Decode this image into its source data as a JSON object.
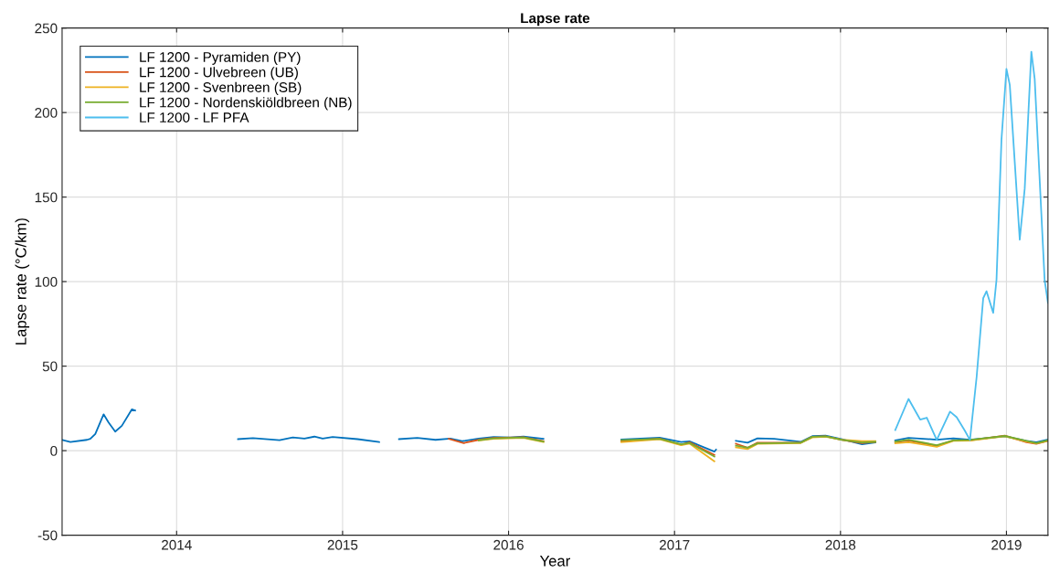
{
  "chart_data": {
    "type": "line",
    "title": "Lapse rate",
    "xlabel": "Year",
    "ylabel": "Lapse rate (°C/km)",
    "xlim": [
      2013.31,
      2019.25
    ],
    "xticks": [
      2014,
      2015,
      2016,
      2017,
      2018,
      2019
    ],
    "ylim": [
      -50,
      250
    ],
    "yticks": [
      -50,
      0,
      50,
      100,
      150,
      200,
      250
    ],
    "grid": true,
    "legend": "top left",
    "line_style": "solid",
    "marker": "none",
    "series": [
      {
        "name": "LF 1200 - Pyramiden (PY)",
        "color": "#0072bd",
        "x": [
          2013.31,
          2013.36,
          2013.46,
          2013.48,
          2013.51,
          2013.56,
          2013.59,
          2013.63,
          2013.67,
          2013.73,
          2013.75,
          2014.0,
          2014.37,
          2014.46,
          2014.62,
          2014.7,
          2014.77,
          2014.83,
          2014.88,
          2014.94,
          2015.09,
          2015.22,
          2015.3,
          2015.34,
          2015.45,
          2015.56,
          2015.65,
          2015.72,
          2015.82,
          2015.91,
          2016.01,
          2016.09,
          2016.21,
          2016.4,
          2016.68,
          2016.91,
          2017.04,
          2017.09,
          2017.24,
          2017.25,
          2017.3,
          2017.37,
          2017.44,
          2017.5,
          2017.6,
          2017.76,
          2017.83,
          2017.91,
          2018.01,
          2018.13,
          2018.21,
          2018.3,
          2018.33,
          2018.41,
          2018.58,
          2018.68,
          2018.78,
          2018.99,
          2019.12,
          2019.18,
          2019.25
        ],
        "values": [
          6.4,
          5.1,
          6.4,
          7.0,
          9.9,
          21.5,
          16.7,
          11.3,
          14.7,
          24.4,
          23.8,
          null,
          6.8,
          7.4,
          6.2,
          7.8,
          7.1,
          8.3,
          7.1,
          8.1,
          6.8,
          5.1,
          null,
          6.8,
          7.6,
          6.4,
          7.1,
          5.6,
          7.1,
          8.1,
          7.8,
          8.3,
          7.0,
          null,
          6.6,
          7.7,
          5.1,
          5.5,
          -0.6,
          0.6,
          null,
          5.8,
          4.7,
          7.3,
          7.0,
          5.2,
          8.6,
          8.9,
          6.7,
          3.8,
          4.9,
          null,
          6.1,
          7.6,
          6.5,
          7.3,
          6.5,
          8.5,
          5.8,
          5.0,
          6.5
        ]
      },
      {
        "name": "LF 1200 - Ulvebreen (UB)",
        "color": "#d95319",
        "x": [
          2015.64,
          2015.73,
          2015.82,
          2015.91,
          2016.09,
          2016.21,
          2016.4,
          2016.68,
          2016.91,
          2017.04,
          2017.09,
          2017.24,
          2017.3,
          2017.37,
          2017.44,
          2017.5,
          2017.76,
          2017.83,
          2017.91,
          2018.01,
          2018.13,
          2018.21,
          2018.3,
          2018.33,
          2018.41,
          2018.58,
          2018.68,
          2018.78,
          2018.99,
          2019.12,
          2019.18,
          2019.25
        ],
        "values": [
          7.0,
          4.5,
          6.4,
          7.6,
          8.0,
          5.6,
          null,
          5.5,
          7.2,
          3.5,
          5.0,
          -2.5,
          null,
          4.1,
          1.7,
          4.7,
          4.7,
          8.2,
          8.5,
          6.3,
          4.5,
          5.2,
          null,
          5.0,
          6.0,
          2.8,
          6.1,
          6.1,
          8.9,
          5.0,
          4.1,
          5.8
        ]
      },
      {
        "name": "LF 1200 - Svenbreen (SB)",
        "color": "#edb120",
        "x": [
          2015.82,
          2015.91,
          2016.09,
          2016.21,
          2016.4,
          2016.68,
          2016.91,
          2017.04,
          2017.09,
          2017.24,
          2017.3,
          2017.37,
          2017.44,
          2017.5,
          2017.76,
          2017.83,
          2017.91,
          2018.01,
          2018.13,
          2018.21,
          2018.3,
          2018.33,
          2018.41,
          2018.58,
          2018.68,
          2018.78,
          2018.99,
          2019.12,
          2019.18,
          2019.25
        ],
        "values": [
          6.0,
          7.0,
          7.6,
          5.1,
          null,
          5.0,
          6.8,
          3.2,
          4.2,
          -6.3,
          null,
          2.0,
          0.9,
          4.0,
          4.5,
          7.8,
          8.2,
          6.5,
          5.6,
          5.6,
          null,
          4.3,
          5.0,
          2.3,
          5.8,
          6.0,
          8.5,
          5.4,
          4.3,
          5.8
        ]
      },
      {
        "name": "LF 1200 - Nordenskiöldbreen (NB)",
        "color": "#77ac30",
        "x": [
          2015.82,
          2015.91,
          2016.09,
          2016.21,
          2016.4,
          2016.68,
          2016.91,
          2017.04,
          2017.09,
          2017.24,
          2017.3,
          2017.37,
          2017.44,
          2017.5,
          2017.76,
          2017.83,
          2017.91,
          2018.01,
          2018.13,
          2018.21,
          2018.3,
          2018.33,
          2018.41,
          2018.58,
          2018.68,
          2018.78,
          2018.99,
          2019.12,
          2019.18,
          2019.25
        ],
        "values": [
          6.2,
          7.3,
          7.8,
          5.4,
          null,
          6.2,
          7.0,
          3.8,
          4.6,
          -3.5,
          null,
          3.0,
          1.7,
          4.3,
          4.7,
          8.2,
          8.5,
          6.3,
          4.9,
          5.2,
          null,
          5.4,
          6.5,
          3.2,
          6.1,
          6.3,
          8.7,
          5.8,
          4.5,
          6.1
        ]
      },
      {
        "name": "LF 1200 - LF PFA",
        "color": "#4dbeee",
        "x": [
          2018.33,
          2018.41,
          2018.48,
          2018.52,
          2018.58,
          2018.66,
          2018.7,
          2018.75,
          2018.78,
          2018.82,
          2018.86,
          2018.88,
          2018.92,
          2018.94,
          2018.97,
          2019.0,
          2019.02,
          2019.08,
          2019.11,
          2019.15,
          2019.17,
          2019.23,
          2019.25
        ],
        "values": [
          12.2,
          30.6,
          18.4,
          19.5,
          6.3,
          23.1,
          19.8,
          11.7,
          6.3,
          43.3,
          90.2,
          94.3,
          81.5,
          101,
          184,
          225.8,
          216.4,
          124.8,
          155,
          236,
          220,
          101,
          87.4
        ]
      }
    ]
  }
}
